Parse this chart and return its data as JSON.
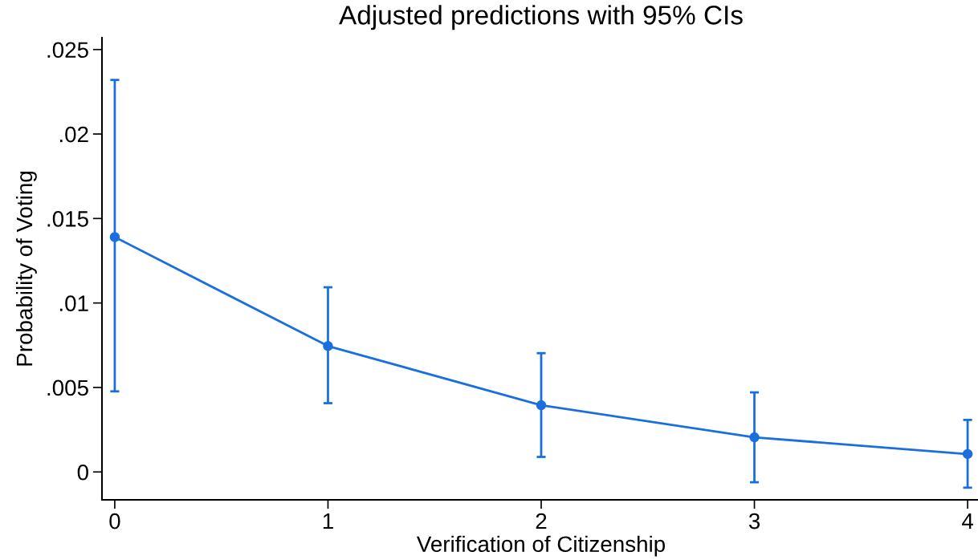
{
  "chart_data": {
    "type": "line",
    "title": "Adjusted predictions with 95% CIs",
    "xlabel": "Verification of Citizenship",
    "ylabel": "Probability of Voting",
    "x": [
      0,
      1,
      2,
      3,
      4
    ],
    "series": [
      {
        "color": "#1a6fdf",
        "values": [
          0.0139,
          0.00745,
          0.00395,
          0.00205,
          0.00106
        ],
        "errors": [
          [
            0.00477,
            0.0232
          ],
          [
            0.00407,
            0.01093
          ],
          [
            0.00089,
            0.00703
          ],
          [
            -0.00061,
            0.00471
          ],
          [
            -0.00093,
            0.00308
          ]
        ]
      }
    ],
    "xlim": [
      -0.06,
      4.06
    ],
    "ylim": [
      -0.00165,
      0.0257
    ],
    "xticks": [
      0,
      1,
      2,
      3,
      4
    ],
    "yticks": [
      {
        "value": 0,
        "label": "0"
      },
      {
        "value": 0.005,
        "label": ".005"
      },
      {
        "value": 0.01,
        "label": ".01"
      },
      {
        "value": 0.015,
        "label": ".015"
      },
      {
        "value": 0.02,
        "label": ".02"
      },
      {
        "value": 0.025,
        "label": ".025"
      }
    ],
    "marker": "circle",
    "line_style": "solid",
    "grid": false
  }
}
